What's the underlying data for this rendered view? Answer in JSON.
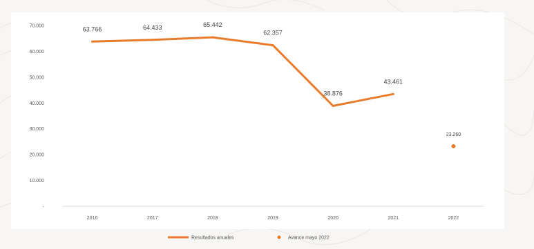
{
  "chart_data": {
    "type": "line",
    "title": "",
    "xlabel": "",
    "ylabel": "",
    "categories": [
      "2016",
      "2017",
      "2018",
      "2019",
      "2020",
      "2021",
      "2022"
    ],
    "ylim": [
      0,
      70000
    ],
    "y_ticks": [
      {
        "value": 0,
        "label": "-"
      },
      {
        "value": 10000,
        "label": "10.000"
      },
      {
        "value": 20000,
        "label": "20.000"
      },
      {
        "value": 30000,
        "label": "30.000"
      },
      {
        "value": 40000,
        "label": "40.000"
      },
      {
        "value": 50000,
        "label": "50.000"
      },
      {
        "value": 60000,
        "label": "60.000"
      },
      {
        "value": 70000,
        "label": "70.000"
      }
    ],
    "grid": false,
    "legend_position": "bottom",
    "series": [
      {
        "name": "Resultados anuales",
        "kind": "line",
        "color": "#e87b2c",
        "points": [
          {
            "x": "2016",
            "y": 63766,
            "label": "63.766"
          },
          {
            "x": "2017",
            "y": 64433,
            "label": "64.433"
          },
          {
            "x": "2018",
            "y": 65442,
            "label": "65.442"
          },
          {
            "x": "2019",
            "y": 62357,
            "label": "62.357"
          },
          {
            "x": "2020",
            "y": 38876,
            "label": "38.876"
          },
          {
            "x": "2021",
            "y": 43461,
            "label": "43.461"
          }
        ]
      },
      {
        "name": "Avance mayo 2022",
        "kind": "marker",
        "color": "#e87b2c",
        "points": [
          {
            "x": "2022",
            "y": 23260,
            "label": "23.260"
          }
        ]
      }
    ]
  }
}
